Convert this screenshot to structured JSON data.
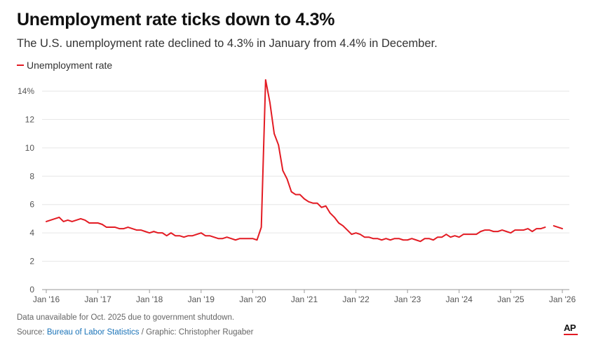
{
  "title": "Unemployment rate ticks down to 4.3%",
  "subtitle": "The U.S. unemployment rate declined to 4.3% in January from 4.4% in December.",
  "legend_label": "Unemployment rate",
  "note": "Data unavailable for Oct. 2025 due to government shutdown.",
  "source_prefix": "Source: ",
  "source_link": "Bureau of Labor Statistics",
  "source_suffix": " / Graphic: Christopher Rugaber",
  "logo": "AP",
  "colors": {
    "line": "#e31b23",
    "grid": "#e6e6e6",
    "axis": "#999999"
  },
  "chart_data": {
    "type": "line",
    "title": "Unemployment rate ticks down to 4.3%",
    "xlabel": "",
    "ylabel": "",
    "ylim": [
      0,
      14
    ],
    "y_ticks": [
      {
        "value": 0,
        "label": "0"
      },
      {
        "value": 2,
        "label": "2"
      },
      {
        "value": 4,
        "label": "4"
      },
      {
        "value": 6,
        "label": "6"
      },
      {
        "value": 8,
        "label": "8"
      },
      {
        "value": 10,
        "label": "10"
      },
      {
        "value": 12,
        "label": "12"
      },
      {
        "value": 14,
        "label": "14%"
      }
    ],
    "x_ticks": [
      "Jan '16",
      "Jan '17",
      "Jan '18",
      "Jan '19",
      "Jan '20",
      "Jan '21",
      "Jan '22",
      "Jan '23",
      "Jan '24",
      "Jan '25",
      "Jan '26"
    ],
    "start": "2016-01",
    "series": [
      {
        "name": "Unemployment rate",
        "values": [
          4.8,
          4.9,
          5.0,
          5.1,
          4.8,
          4.9,
          4.8,
          4.9,
          5.0,
          4.9,
          4.7,
          4.7,
          4.7,
          4.6,
          4.4,
          4.4,
          4.4,
          4.3,
          4.3,
          4.4,
          4.3,
          4.2,
          4.2,
          4.1,
          4.0,
          4.1,
          4.0,
          4.0,
          3.8,
          4.0,
          3.8,
          3.8,
          3.7,
          3.8,
          3.8,
          3.9,
          4.0,
          3.8,
          3.8,
          3.7,
          3.6,
          3.6,
          3.7,
          3.6,
          3.5,
          3.6,
          3.6,
          3.6,
          3.6,
          3.5,
          4.4,
          14.8,
          13.2,
          11.0,
          10.2,
          8.4,
          7.8,
          6.9,
          6.7,
          6.7,
          6.4,
          6.2,
          6.1,
          6.1,
          5.8,
          5.9,
          5.4,
          5.1,
          4.7,
          4.5,
          4.2,
          3.9,
          4.0,
          3.9,
          3.7,
          3.7,
          3.6,
          3.6,
          3.5,
          3.6,
          3.5,
          3.6,
          3.6,
          3.5,
          3.5,
          3.6,
          3.5,
          3.4,
          3.6,
          3.6,
          3.5,
          3.7,
          3.7,
          3.9,
          3.7,
          3.8,
          3.7,
          3.9,
          3.9,
          3.9,
          3.9,
          4.1,
          4.2,
          4.2,
          4.1,
          4.1,
          4.2,
          4.1,
          4.0,
          4.2,
          4.2,
          4.2,
          4.3,
          4.1,
          4.3,
          4.3,
          4.4,
          null,
          4.5,
          4.4,
          4.3
        ]
      }
    ]
  }
}
